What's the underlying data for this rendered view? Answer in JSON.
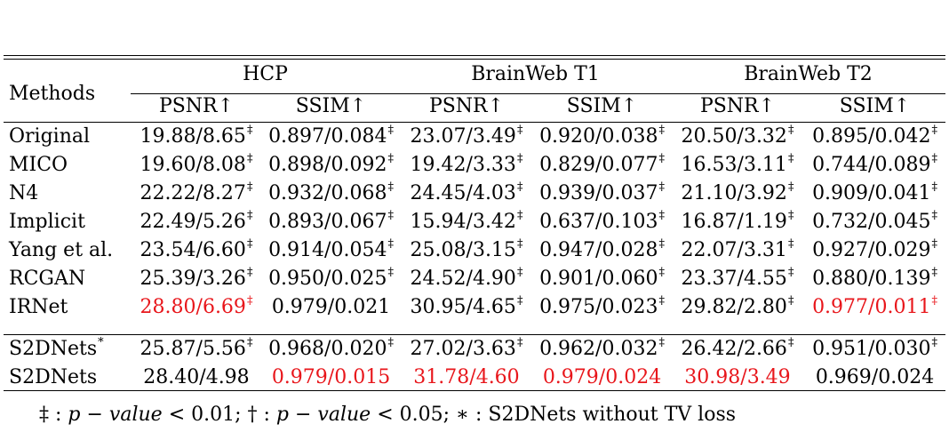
{
  "table": {
    "methods_header": "Methods",
    "groups": [
      "HCP",
      "BrainWeb T1",
      "BrainWeb T2"
    ],
    "metrics": [
      "PSNR↑",
      "SSIM↑",
      "PSNR↑",
      "SSIM↑",
      "PSNR↑",
      "SSIM↑"
    ],
    "rows": [
      {
        "method": "Original",
        "method_sup": "",
        "cells": [
          {
            "v": "19.88/8.65",
            "sup": "‡",
            "red": false
          },
          {
            "v": "0.897/0.084",
            "sup": "‡",
            "red": false
          },
          {
            "v": "23.07/3.49",
            "sup": "‡",
            "red": false
          },
          {
            "v": "0.920/0.038",
            "sup": "‡",
            "red": false
          },
          {
            "v": "20.50/3.32",
            "sup": "‡",
            "red": false
          },
          {
            "v": "0.895/0.042",
            "sup": "‡",
            "red": false
          }
        ]
      },
      {
        "method": "MICO",
        "method_sup": "",
        "cells": [
          {
            "v": "19.60/8.08",
            "sup": "‡",
            "red": false
          },
          {
            "v": "0.898/0.092",
            "sup": "‡",
            "red": false
          },
          {
            "v": "19.42/3.33",
            "sup": "‡",
            "red": false
          },
          {
            "v": "0.829/0.077",
            "sup": "‡",
            "red": false
          },
          {
            "v": "16.53/3.11",
            "sup": "‡",
            "red": false
          },
          {
            "v": "0.744/0.089",
            "sup": "‡",
            "red": false
          }
        ]
      },
      {
        "method": "N4",
        "method_sup": "",
        "cells": [
          {
            "v": "22.22/8.27",
            "sup": "‡",
            "red": false
          },
          {
            "v": "0.932/0.068",
            "sup": "‡",
            "red": false
          },
          {
            "v": "24.45/4.03",
            "sup": "‡",
            "red": false
          },
          {
            "v": "0.939/0.037",
            "sup": "‡",
            "red": false
          },
          {
            "v": "21.10/3.92",
            "sup": "‡",
            "red": false
          },
          {
            "v": "0.909/0.041",
            "sup": "‡",
            "red": false
          }
        ]
      },
      {
        "method": "Implicit",
        "method_sup": "",
        "cells": [
          {
            "v": "22.49/5.26",
            "sup": "‡",
            "red": false
          },
          {
            "v": "0.893/0.067",
            "sup": "‡",
            "red": false
          },
          {
            "v": "15.94/3.42",
            "sup": "‡",
            "red": false
          },
          {
            "v": "0.637/0.103",
            "sup": "‡",
            "red": false
          },
          {
            "v": "16.87/1.19",
            "sup": "‡",
            "red": false
          },
          {
            "v": "0.732/0.045",
            "sup": "‡",
            "red": false
          }
        ]
      },
      {
        "method": "Yang et al.",
        "method_sup": "",
        "cells": [
          {
            "v": "23.54/6.60",
            "sup": "‡",
            "red": false
          },
          {
            "v": "0.914/0.054",
            "sup": "‡",
            "red": false
          },
          {
            "v": "25.08/3.15",
            "sup": "‡",
            "red": false
          },
          {
            "v": "0.947/0.028",
            "sup": "‡",
            "red": false
          },
          {
            "v": "22.07/3.31",
            "sup": "‡",
            "red": false
          },
          {
            "v": "0.927/0.029",
            "sup": "‡",
            "red": false
          }
        ]
      },
      {
        "method": "RCGAN",
        "method_sup": "",
        "cells": [
          {
            "v": "25.39/3.26",
            "sup": "‡",
            "red": false
          },
          {
            "v": "0.950/0.025",
            "sup": "‡",
            "red": false
          },
          {
            "v": "24.52/4.90",
            "sup": "‡",
            "red": false
          },
          {
            "v": "0.901/0.060",
            "sup": "‡",
            "red": false
          },
          {
            "v": "23.37/4.55",
            "sup": "‡",
            "red": false
          },
          {
            "v": "0.880/0.139",
            "sup": "‡",
            "red": false
          }
        ]
      },
      {
        "method": "IRNet",
        "method_sup": "",
        "cells": [
          {
            "v": "28.80/6.69",
            "sup": "‡",
            "red": true
          },
          {
            "v": "0.979/0.021",
            "sup": "",
            "red": false
          },
          {
            "v": "30.95/4.65",
            "sup": "‡",
            "red": false
          },
          {
            "v": "0.975/0.023",
            "sup": "‡",
            "red": false
          },
          {
            "v": "29.82/2.80",
            "sup": "‡",
            "red": false
          },
          {
            "v": "0.977/0.011",
            "sup": "‡",
            "red": true
          }
        ]
      },
      {
        "method": "S2DNets",
        "method_sup": "*",
        "cells": [
          {
            "v": "25.87/5.56",
            "sup": "‡",
            "red": false
          },
          {
            "v": "0.968/0.020",
            "sup": "‡",
            "red": false
          },
          {
            "v": "27.02/3.63",
            "sup": "‡",
            "red": false
          },
          {
            "v": "0.962/0.032",
            "sup": "‡",
            "red": false
          },
          {
            "v": "26.42/2.66",
            "sup": "‡",
            "red": false
          },
          {
            "v": "0.951/0.030",
            "sup": "‡",
            "red": false
          }
        ]
      },
      {
        "method": "S2DNets",
        "method_sup": "",
        "cells": [
          {
            "v": "28.40/4.98",
            "sup": "",
            "red": false
          },
          {
            "v": "0.979/0.015",
            "sup": "",
            "red": true
          },
          {
            "v": "31.78/4.60",
            "sup": "",
            "red": true
          },
          {
            "v": "0.979/0.024",
            "sup": "",
            "red": true
          },
          {
            "v": "30.98/3.49",
            "sup": "",
            "red": true
          },
          {
            "v": "0.969/0.024",
            "sup": "",
            "red": false
          }
        ]
      }
    ]
  },
  "footnote": {
    "dagger2": "‡",
    "p_value": "p − value",
    "lt1": "< 0.01;",
    "dagger1": "†",
    "lt2": "< 0.05;",
    "star": "∗",
    "star_text": ": S2DNets without TV loss"
  },
  "colors": {
    "highlight": "#e8161b"
  }
}
